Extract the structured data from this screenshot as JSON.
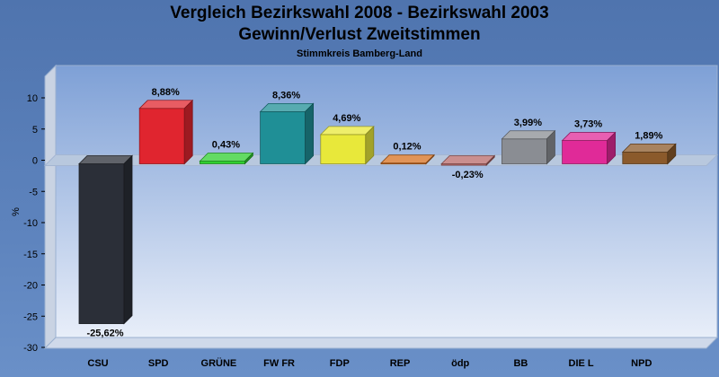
{
  "chart_data": {
    "type": "bar",
    "title": "Vergleich Bezirkswahl 2008 - Bezirkswahl 2003",
    "subtitle": "Gewinn/Verlust Zweitstimmen",
    "subsubtitle": "Stimmkreis Bamberg-Land",
    "xlabel": "",
    "ylabel": "%",
    "ylim": [
      -30,
      10
    ],
    "yticks": [
      10,
      5,
      0,
      -5,
      -10,
      -15,
      -20,
      -25,
      -30
    ],
    "categories": [
      "CSU",
      "SPD",
      "GRÜNE",
      "FW FR",
      "FDP",
      "REP",
      "ödp",
      "BB",
      "DIE L",
      "NPD"
    ],
    "values": [
      -25.62,
      8.88,
      0.43,
      8.36,
      4.69,
      0.12,
      -0.23,
      3.99,
      3.73,
      1.89
    ],
    "data_labels": [
      "-25,62%",
      "8,88%",
      "0,43%",
      "8,36%",
      "4,69%",
      "0,12%",
      "-0,23%",
      "3,99%",
      "3,73%",
      "1,89%"
    ],
    "colors": [
      "#2b2f38",
      "#e0252f",
      "#2fcf2f",
      "#1f8f96",
      "#e8e83a",
      "#d7701f",
      "#b86a6a",
      "#8a8d93",
      "#e02a98",
      "#8b5a2b"
    ],
    "grid": false,
    "legend": "none"
  }
}
